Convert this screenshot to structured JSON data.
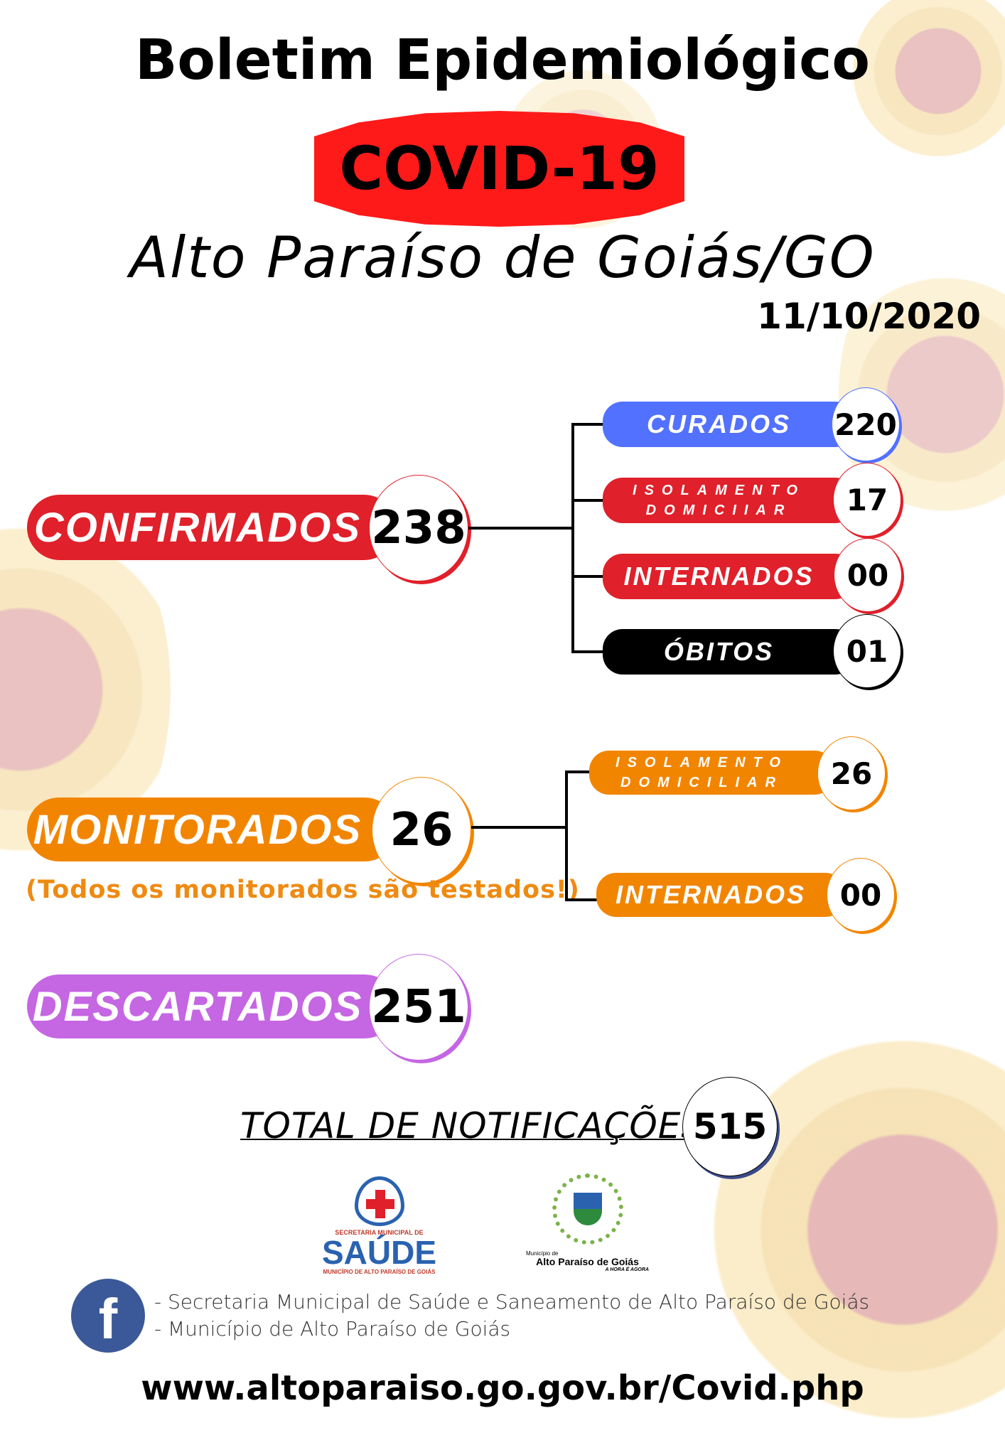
{
  "header": {
    "title": "Boletim Epidemiológico",
    "badge": "COVID-19",
    "city": "Alto Paraíso de Goiás/GO",
    "date": "11/10/2020"
  },
  "colors": {
    "confirmed": "#e0202a",
    "cured": "#5271ff",
    "deaths": "#000000",
    "monitored": "#f28500",
    "discarded": "#c566e3",
    "covid_badge": "#ff1a1a"
  },
  "confirmados": {
    "label": "CONFIRMADOS",
    "value": "238",
    "breakdown": [
      {
        "label": "CURADOS",
        "value": "220"
      },
      {
        "label_line1": "ISOLAMENTO",
        "label_line2": "DOMICIIAR",
        "value": "17"
      },
      {
        "label": "INTERNADOS",
        "value": "00"
      },
      {
        "label": "ÓBITOS",
        "value": "01"
      }
    ]
  },
  "monitorados": {
    "label": "MONITORADOS",
    "value": "26",
    "note": "(Todos os monitorados são testados!)",
    "breakdown": [
      {
        "label_line1": "ISOLAMENTO",
        "label_line2": "DOMICILIAR",
        "value": "26"
      },
      {
        "label": "INTERNADOS",
        "value": "00"
      }
    ]
  },
  "descartados": {
    "label": "DESCARTADOS",
    "value": "251"
  },
  "total": {
    "label": "TOTAL DE NOTIFICAÇÕES",
    "value": "515"
  },
  "logos": {
    "saude_top": "SECRETARIA MUNICIPAL DE",
    "saude_main": "SAÚDE",
    "saude_bottom": "MUNICÍPIO DE ALTO PARAÍSO DE GOIÁS",
    "municipio_small": "Município de",
    "municipio_name": "Alto Paraíso de Goiás",
    "municipio_slogan": "A HORA É AGORA"
  },
  "footer": {
    "facebook_icon": "facebook-icon",
    "line1": "- Secretaria Municipal de Saúde e Saneamento de Alto Paraíso de Goiás",
    "line2": "- Município de Alto Paraíso de Goiás",
    "url": "www.altoparaiso.go.gov.br/Covid.php"
  }
}
